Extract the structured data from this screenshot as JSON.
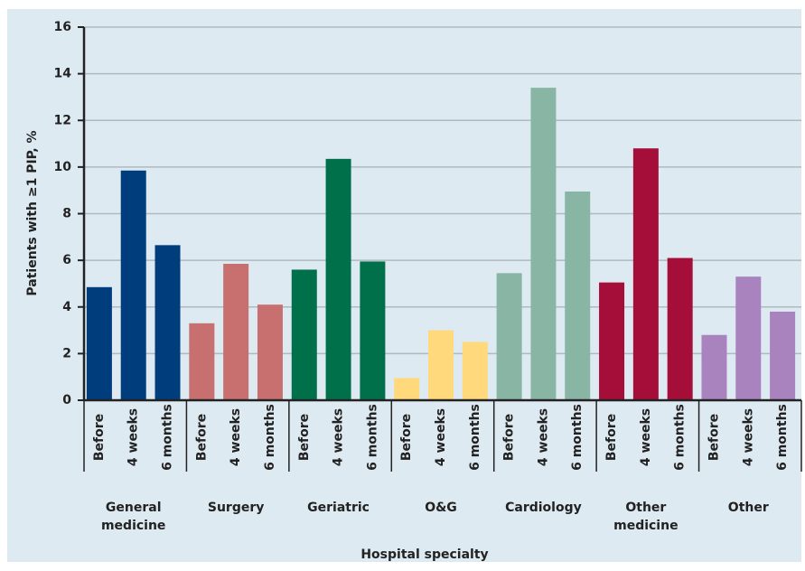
{
  "chart_data": {
    "type": "grouped_bar",
    "xlabel": "Hospital specialty",
    "ylabel": "Patients with ≥1 PIP, %",
    "bar_labels": [
      "Before",
      "4 weeks",
      "6 months"
    ],
    "groups": [
      {
        "name": "General medicine",
        "color": "#003d7c",
        "values": [
          4.85,
          9.85,
          6.65
        ]
      },
      {
        "name": "Surgery",
        "color": "#c86f70",
        "values": [
          3.3,
          5.85,
          4.1
        ]
      },
      {
        "name": "Geriatric",
        "color": "#00704b",
        "values": [
          5.6,
          10.35,
          5.95
        ]
      },
      {
        "name": "O&G",
        "color": "#ffd97b",
        "values": [
          0.95,
          3.0,
          2.5
        ]
      },
      {
        "name": "Cardiology",
        "color": "#88b5a4",
        "values": [
          5.45,
          13.4,
          8.95
        ]
      },
      {
        "name": "Other medicine",
        "color": "#a40e39",
        "values": [
          5.05,
          10.8,
          6.1
        ]
      },
      {
        "name": "Other",
        "color": "#a983be",
        "values": [
          2.8,
          5.3,
          3.8
        ]
      }
    ],
    "ylim": [
      0,
      16
    ],
    "yticks": [
      0,
      2,
      4,
      6,
      8,
      10,
      12,
      14,
      16
    ],
    "grid": true
  }
}
